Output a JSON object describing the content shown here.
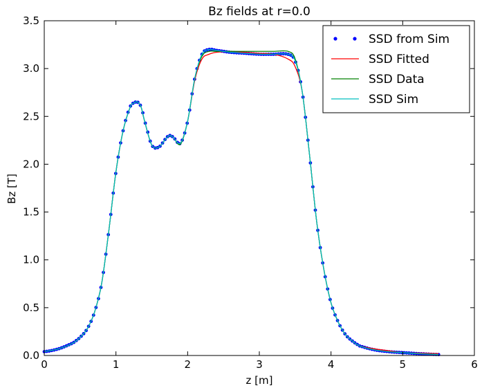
{
  "chart_data": {
    "type": "line",
    "title": "Bz fields at r=0.0",
    "xlabel": "z [m]",
    "ylabel": "Bz [T]",
    "xlim": [
      0,
      6
    ],
    "ylim": [
      0,
      3.5
    ],
    "xticks": [
      0,
      1,
      2,
      3,
      4,
      5,
      6
    ],
    "yticks": [
      0.0,
      0.5,
      1.0,
      1.5,
      2.0,
      2.5,
      3.0,
      3.5
    ],
    "xtick_labels": [
      "0",
      "1",
      "2",
      "3",
      "4",
      "5",
      "6"
    ],
    "ytick_labels": [
      "0.0",
      "0.5",
      "1.0",
      "1.5",
      "2.0",
      "2.5",
      "3.0",
      "3.5"
    ],
    "grid": false,
    "legend_position": "top-right",
    "x": [
      0.0,
      0.2,
      0.4,
      0.5,
      0.6,
      0.7,
      0.8,
      0.9,
      1.0,
      1.1,
      1.2,
      1.25,
      1.3,
      1.35,
      1.4,
      1.5,
      1.6,
      1.7,
      1.75,
      1.8,
      1.9,
      2.0,
      2.1,
      2.2,
      2.3,
      2.4,
      2.6,
      2.8,
      3.0,
      3.2,
      3.4,
      3.5,
      3.6,
      3.7,
      3.8,
      3.9,
      4.0,
      4.1,
      4.2,
      4.3,
      4.4,
      4.6,
      4.8,
      5.0,
      5.2,
      5.5
    ],
    "series": [
      {
        "name": "SSD from Sim",
        "style": "dots",
        "color": "#0000ff",
        "values": [
          0.04,
          0.07,
          0.13,
          0.19,
          0.28,
          0.45,
          0.75,
          1.3,
          1.92,
          2.35,
          2.6,
          2.64,
          2.65,
          2.6,
          2.45,
          2.2,
          2.18,
          2.27,
          2.3,
          2.28,
          2.22,
          2.45,
          2.9,
          3.15,
          3.2,
          3.19,
          3.17,
          3.16,
          3.15,
          3.15,
          3.15,
          3.08,
          2.75,
          2.1,
          1.4,
          0.9,
          0.55,
          0.35,
          0.22,
          0.15,
          0.1,
          0.06,
          0.04,
          0.03,
          0.02,
          0.01
        ]
      },
      {
        "name": "SSD Fitted",
        "style": "line",
        "color": "#ff0000",
        "values": [
          0.04,
          0.07,
          0.13,
          0.19,
          0.28,
          0.45,
          0.75,
          1.3,
          1.92,
          2.35,
          2.6,
          2.64,
          2.65,
          2.6,
          2.45,
          2.2,
          2.18,
          2.27,
          2.3,
          2.28,
          2.22,
          2.45,
          2.88,
          3.1,
          3.15,
          3.17,
          3.18,
          3.17,
          3.16,
          3.15,
          3.1,
          3.02,
          2.75,
          2.1,
          1.4,
          0.9,
          0.55,
          0.35,
          0.22,
          0.15,
          0.1,
          0.07,
          0.05,
          0.03,
          0.025,
          0.02
        ]
      },
      {
        "name": "SSD Data",
        "style": "line",
        "color": "#008000",
        "values": [
          0.04,
          0.07,
          0.13,
          0.19,
          0.28,
          0.45,
          0.75,
          1.3,
          1.92,
          2.35,
          2.6,
          2.64,
          2.65,
          2.6,
          2.45,
          2.2,
          2.18,
          2.27,
          2.3,
          2.28,
          2.21,
          2.45,
          2.9,
          3.13,
          3.18,
          3.18,
          3.18,
          3.18,
          3.18,
          3.18,
          3.18,
          3.1,
          2.75,
          2.1,
          1.4,
          0.9,
          0.55,
          0.35,
          0.22,
          0.15,
          0.1,
          0.06,
          0.04,
          0.03,
          0.02,
          0.01
        ]
      },
      {
        "name": "SSD Sim",
        "style": "line",
        "color": "#00bfbf",
        "values": [
          0.04,
          0.07,
          0.13,
          0.19,
          0.28,
          0.45,
          0.75,
          1.3,
          1.92,
          2.35,
          2.6,
          2.64,
          2.65,
          2.6,
          2.45,
          2.2,
          2.18,
          2.27,
          2.3,
          2.28,
          2.22,
          2.45,
          2.9,
          3.15,
          3.2,
          3.19,
          3.17,
          3.16,
          3.15,
          3.15,
          3.15,
          3.08,
          2.75,
          2.1,
          1.4,
          0.9,
          0.55,
          0.35,
          0.22,
          0.15,
          0.1,
          0.06,
          0.04,
          0.03,
          0.02,
          0.01
        ]
      }
    ]
  }
}
